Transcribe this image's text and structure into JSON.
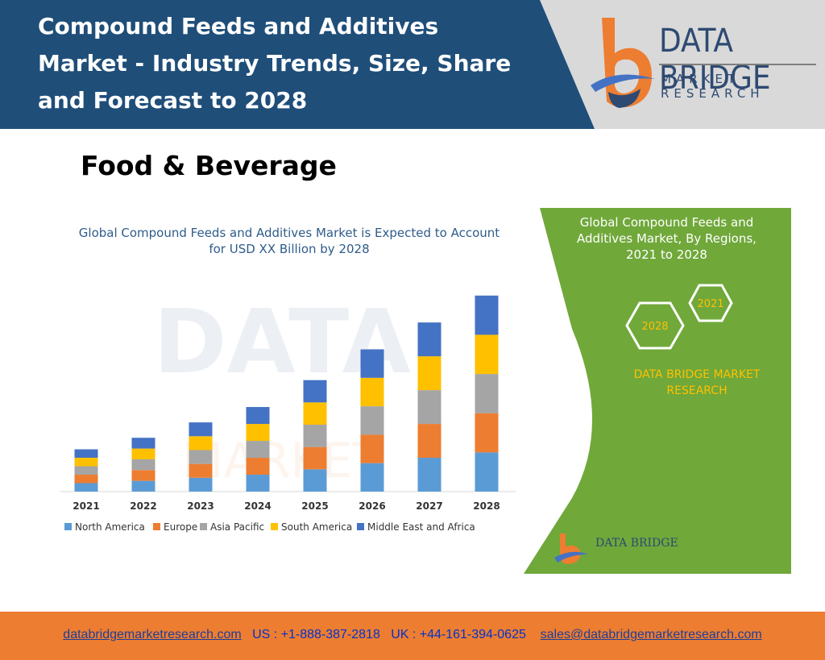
{
  "header": {
    "title": "Compound Feeds and Additives\nMarket - Industry Trends, Size, Share\nand Forecast to 2028",
    "logo_line1": "DATA BRIDGE",
    "logo_line2": "MARKET RESEARCH"
  },
  "category": "Food & Beverage",
  "side_panel": {
    "title": "Global Compound Feeds and\nAdditives Market, By Regions,\n2021 to 2028",
    "hex_label_1": "2021",
    "hex_label_2": "2028",
    "brand": "DATA BRIDGE MARKET RESEARCH",
    "mini_logo": "DATA BRIDGE"
  },
  "footer": {
    "website": "databridgemarketresearch.com",
    "us_phone": "US : +1-888-387-2818",
    "uk_phone": "UK : +44-161-394-0625",
    "email": "sales@databridgemarketresearch.com"
  },
  "colors": {
    "header_bg": "#1f4e79",
    "panel_green": "#70a83a",
    "footer_bg": "#ed7d31",
    "north_america": "#5b9bd5",
    "europe": "#ed7d31",
    "asia_pacific": "#a5a5a5",
    "south_america": "#ffc000",
    "middle_east_africa": "#4472c4"
  },
  "chart_data": {
    "type": "bar",
    "stacked": true,
    "title": "Global Compound Feeds and Additives Market is Expected to Account\nfor USD XX Billion by 2028",
    "categories": [
      "2021",
      "2022",
      "2023",
      "2024",
      "2025",
      "2026",
      "2027",
      "2028"
    ],
    "series": [
      {
        "name": "North America",
        "values": [
          11,
          14,
          18,
          22,
          29,
          37,
          44,
          51
        ]
      },
      {
        "name": "Europe",
        "values": [
          11,
          14,
          18,
          22,
          29,
          37,
          44,
          51
        ]
      },
      {
        "name": "Asia Pacific",
        "values": [
          11,
          14,
          18,
          22,
          29,
          37,
          44,
          51
        ]
      },
      {
        "name": "South America",
        "values": [
          11,
          14,
          18,
          22,
          29,
          37,
          44,
          51
        ]
      },
      {
        "name": "Middle East and Africa",
        "values": [
          11,
          14,
          18,
          22,
          29,
          37,
          44,
          51
        ]
      }
    ],
    "ylim": [
      0,
      260
    ],
    "grid": false,
    "legend_position": "bottom"
  }
}
